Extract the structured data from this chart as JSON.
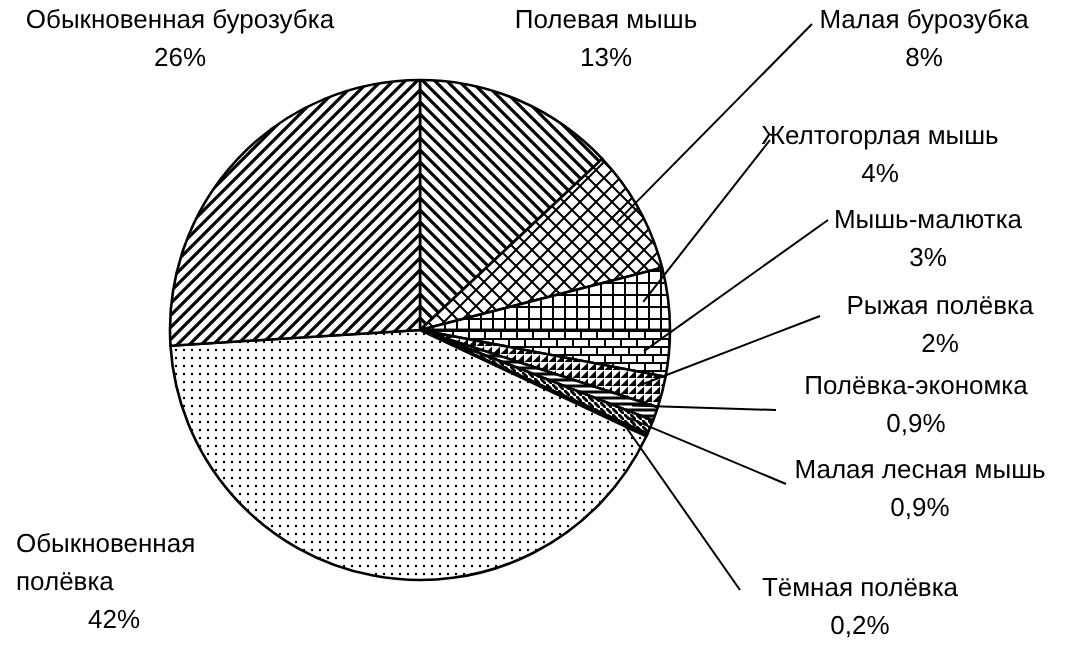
{
  "chart_data": {
    "type": "pie",
    "categories": [
      "Полевая мышь",
      "Малая бурозубка",
      "Желтогорлая мышь",
      "Мышь-малютка",
      "Рыжая полёвка",
      "Полёвка-экономка",
      "Малая лесная мышь",
      "Тёмная полёвка",
      "Обыкновенная полёвка",
      "Обыкновенная бурозубка"
    ],
    "values": [
      13,
      8,
      4,
      3,
      2,
      0.9,
      0.9,
      0.2,
      42,
      26
    ],
    "value_labels": [
      "13%",
      "8%",
      "4%",
      "3%",
      "2%",
      "0,9%",
      "0,9%",
      "0,2%",
      "42%",
      "26%"
    ],
    "colors": [
      "#000000",
      "#000000",
      "#000000",
      "#000000",
      "#000000",
      "#000000",
      "#000000",
      "#000000",
      "#000000",
      "#000000"
    ]
  }
}
